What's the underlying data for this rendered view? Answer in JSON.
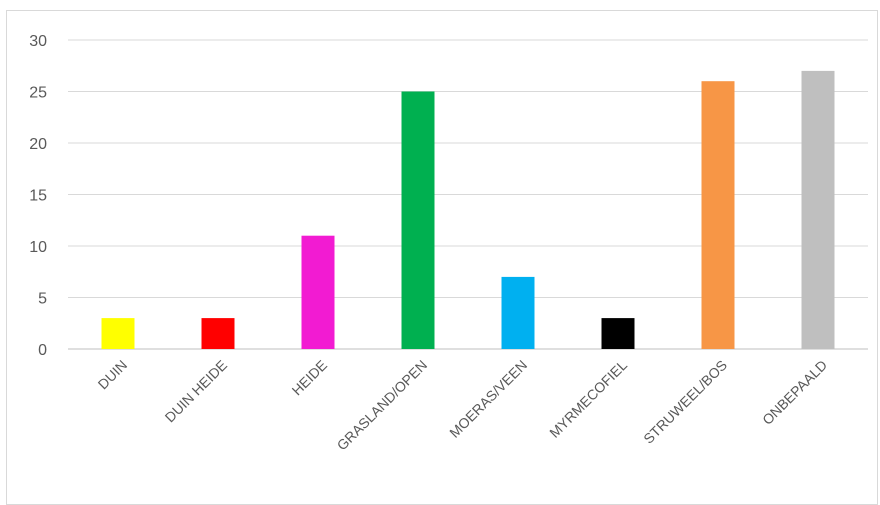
{
  "chart_data": {
    "type": "bar",
    "title": "",
    "xlabel": "",
    "ylabel": "",
    "categories": [
      "DUIN",
      "DUIN HEIDE",
      "HEIDE",
      "GRASLAND/OPEN",
      "MOERAS/VEEN",
      "MYRMECOFIEL",
      "STRUWEEL/BOS",
      "ONBEPAALD"
    ],
    "values": [
      3,
      3,
      11,
      25,
      7,
      3,
      26,
      27
    ],
    "colors": [
      "#ffff00",
      "#ff0000",
      "#f21bd2",
      "#00b050",
      "#00b0f0",
      "#000000",
      "#f79646",
      "#bfbfbf"
    ],
    "ylim": [
      0,
      30
    ],
    "yticks": [
      0,
      5,
      10,
      15,
      20,
      25,
      30
    ],
    "grid": true,
    "legend": "none"
  }
}
